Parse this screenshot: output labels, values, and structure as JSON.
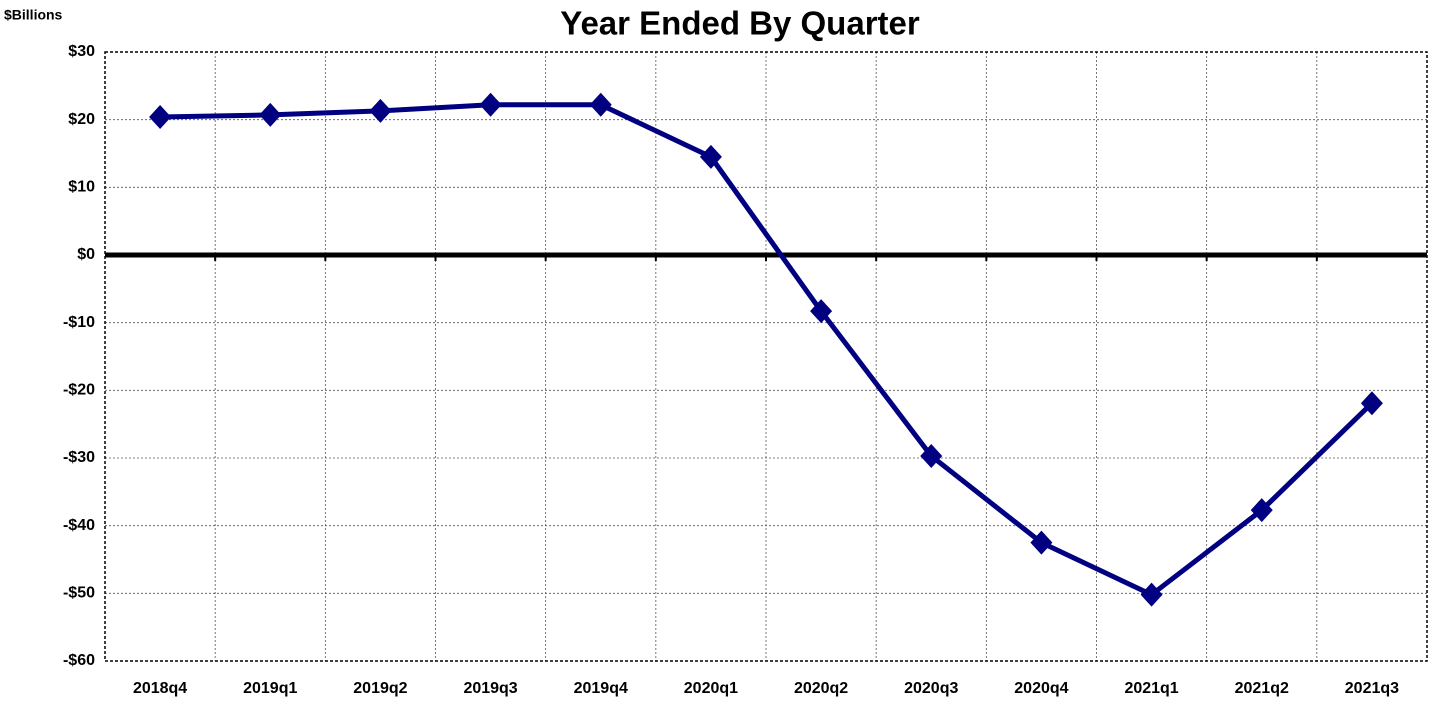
{
  "chart_data": {
    "type": "line",
    "title": "Year Ended By Quarter",
    "y_label": "$Billions",
    "categories": [
      "2018q4",
      "2019q1",
      "2019q2",
      "2019q3",
      "2019q4",
      "2020q1",
      "2020q2",
      "2020q3",
      "2020q4",
      "2021q1",
      "2021q2",
      "2021q3"
    ],
    "series": [
      {
        "name": "Year Ended By Quarter",
        "color": "#000080",
        "values": [
          20.4,
          20.7,
          21.3,
          22.2,
          22.2,
          14.5,
          -8.3,
          -29.7,
          -42.5,
          -50.2,
          -37.7,
          -21.9
        ]
      }
    ],
    "ylim": [
      -60,
      30
    ],
    "yticks": [
      {
        "value": -60,
        "label": "-$60"
      },
      {
        "value": -50,
        "label": "-$50"
      },
      {
        "value": -40,
        "label": "-$40"
      },
      {
        "value": -30,
        "label": "-$30"
      },
      {
        "value": -20,
        "label": "-$20"
      },
      {
        "value": -10,
        "label": "-$10"
      },
      {
        "value": 0,
        "label": "$0"
      },
      {
        "value": 10,
        "label": "$10"
      },
      {
        "value": 20,
        "label": "$20"
      },
      {
        "value": 30,
        "label": "$30"
      }
    ],
    "grid": true
  }
}
